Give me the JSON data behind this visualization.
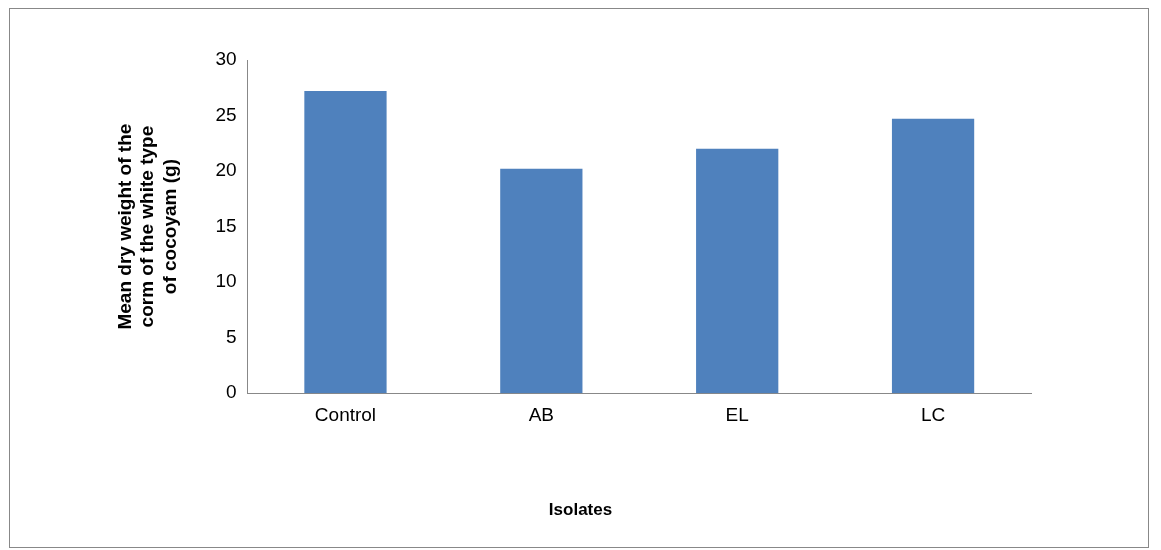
{
  "chart_data": {
    "type": "bar",
    "ylabel": "Mean dry weight of the corm of the white type of cocoyam (g)",
    "xlabel": "Isolates",
    "categories": [
      "Control",
      "AB",
      "EL",
      "LC"
    ],
    "values": [
      27.2,
      20.2,
      22,
      24.7
    ],
    "color": "#4f81bd",
    "ylim": [
      0,
      30
    ],
    "yticks": [
      0,
      5,
      10,
      15,
      20,
      25,
      30
    ],
    "grid": false,
    "legend": false
  }
}
